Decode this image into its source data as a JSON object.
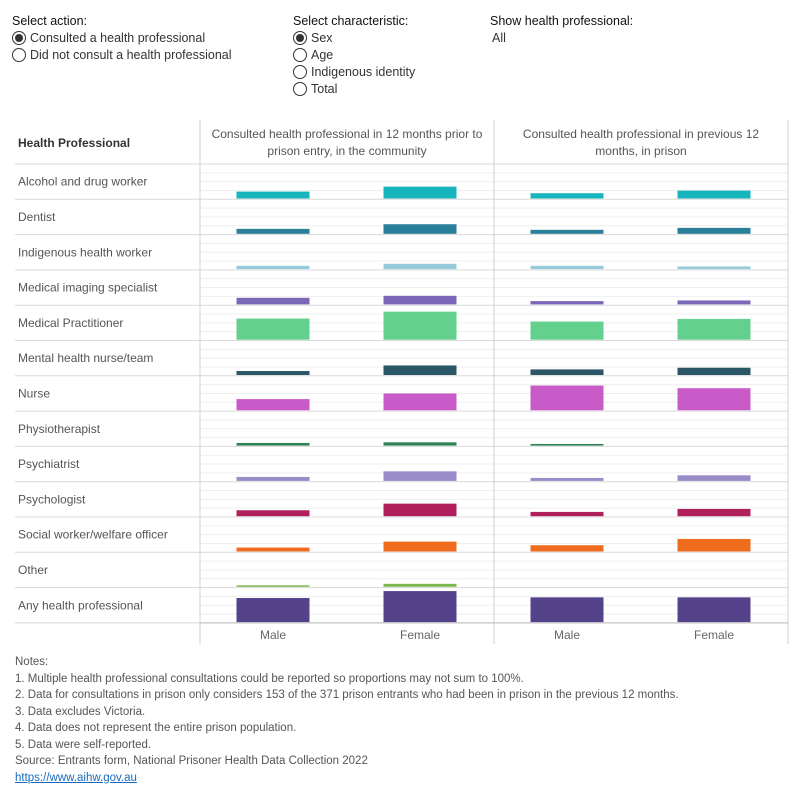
{
  "controls": {
    "action": {
      "title": "Select action:",
      "options": [
        {
          "label": "Consulted a health professional",
          "selected": true
        },
        {
          "label": "Did not consult a health professional",
          "selected": false
        }
      ]
    },
    "characteristic": {
      "title": "Select characteristic:",
      "options": [
        {
          "label": "Sex",
          "selected": true
        },
        {
          "label": "Age",
          "selected": false
        },
        {
          "label": "Indigenous identity",
          "selected": false
        },
        {
          "label": "Total",
          "selected": false
        }
      ]
    },
    "show_hp": {
      "title": "Show health professional:",
      "value": "All"
    }
  },
  "notes": {
    "heading": "Notes:",
    "items": [
      "1. Multiple health professional consultations could be reported so proportions may not sum to 100%.",
      "2. Data for consultations in prison only considers 153 of the 371 prison entrants who had been in prison in the previous 12 months.",
      "3. Data excludes Victoria.",
      "4. Data does not represent the entire prison population.",
      "5. Data were self-reported."
    ],
    "source": "Source: Entrants form, National Prisoner Health Data Collection 2022",
    "link": "https://www.aihw.gov.au"
  },
  "chart_data": {
    "type": "bar",
    "row_header": "Health Professional",
    "panels": [
      {
        "title_lines": [
          "Consulted health professional in 12 months prior to",
          "prison entry, in the community"
        ]
      },
      {
        "title_lines": [
          "Consulted health professional in previous 12",
          "months, in prison"
        ]
      }
    ],
    "x_categories": [
      "Male",
      "Female"
    ],
    "y_domain": [
      0,
      1
    ],
    "rows": [
      {
        "name": "Alcohol and drug worker",
        "color": "#17b5bd",
        "values": [
          [
            0.21,
            0.36
          ],
          [
            0.16,
            0.24
          ]
        ]
      },
      {
        "name": "Dentist",
        "color": "#2a7f9a",
        "values": [
          [
            0.15,
            0.29
          ],
          [
            0.12,
            0.18
          ]
        ]
      },
      {
        "name": "Indigenous health worker",
        "color": "#96cbdc",
        "values": [
          [
            0.1,
            0.16
          ],
          [
            0.1,
            0.08
          ]
        ]
      },
      {
        "name": "Medical imaging specialist",
        "color": "#7b67b8",
        "values": [
          [
            0.2,
            0.26
          ],
          [
            0.1,
            0.12
          ]
        ]
      },
      {
        "name": "Medical Practitioner",
        "color": "#64d08e",
        "values": [
          [
            0.64,
            0.85
          ],
          [
            0.55,
            0.63
          ]
        ]
      },
      {
        "name": "Mental health nurse/team",
        "color": "#2b5665",
        "values": [
          [
            0.12,
            0.29
          ],
          [
            0.17,
            0.22
          ]
        ]
      },
      {
        "name": "Nurse",
        "color": "#c95bc8",
        "values": [
          [
            0.34,
            0.51
          ],
          [
            0.75,
            0.67
          ]
        ]
      },
      {
        "name": "Physiotherapist",
        "color": "#2f8256",
        "values": [
          [
            0.08,
            0.1
          ],
          [
            0.05,
            0.0
          ]
        ]
      },
      {
        "name": "Psychiatrist",
        "color": "#9a8cc9",
        "values": [
          [
            0.12,
            0.29
          ],
          [
            0.09,
            0.17
          ]
        ]
      },
      {
        "name": "Psychologist",
        "color": "#b01e5c",
        "values": [
          [
            0.18,
            0.38
          ],
          [
            0.13,
            0.22
          ]
        ]
      },
      {
        "name": "Social worker/welfare officer",
        "color": "#ef6c1f",
        "values": [
          [
            0.12,
            0.3
          ],
          [
            0.19,
            0.38
          ]
        ]
      },
      {
        "name": "Other",
        "color": "#7ab84e",
        "values": [
          [
            0.03,
            0.09
          ],
          [
            0.0,
            0.0
          ]
        ]
      },
      {
        "name": "Any health professional",
        "color": "#54438b",
        "values": [
          [
            0.73,
            0.94
          ],
          [
            0.75,
            0.75
          ]
        ]
      }
    ]
  }
}
